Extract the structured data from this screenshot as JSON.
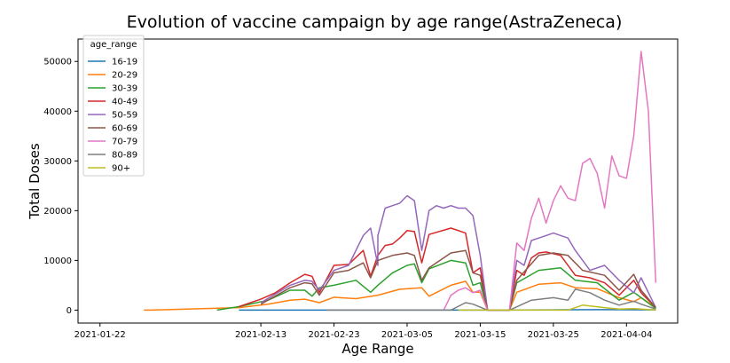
{
  "chart_data": {
    "type": "line",
    "title": "Evolution of vaccine campaign by age range(AstraZeneca)",
    "xlabel": "Age Range",
    "ylabel": "Total Doses",
    "xlim": [
      "2021-01-19",
      "2021-04-11"
    ],
    "ylim": [
      -2600,
      54500
    ],
    "x_ticks": [
      "2021-01-22",
      "2021-02-13",
      "2021-02-23",
      "2021-03-05",
      "2021-03-15",
      "2021-03-25",
      "2021-04-04"
    ],
    "y_ticks": [
      0,
      10000,
      20000,
      30000,
      40000,
      50000
    ],
    "legend": {
      "title": "age_range",
      "placement": "top-left"
    },
    "series": [
      {
        "name": "16-19",
        "color": "#1f77b4",
        "x": [
          "2021-02-10",
          "2021-03-10",
          "2021-03-17",
          "2021-03-25",
          "2021-04-01",
          "2021-04-08"
        ],
        "values": [
          0,
          0,
          0,
          50,
          100,
          50
        ]
      },
      {
        "name": "20-29",
        "color": "#ff7f0e",
        "x": [
          "2021-01-28",
          "2021-01-29",
          "2021-02-10",
          "2021-02-14",
          "2021-02-17",
          "2021-02-19",
          "2021-02-21",
          "2021-02-23",
          "2021-02-26",
          "2021-03-01",
          "2021-03-04",
          "2021-03-07",
          "2021-03-08",
          "2021-03-11",
          "2021-03-13",
          "2021-03-14",
          "2021-03-15",
          "2021-03-16",
          "2021-03-19",
          "2021-03-20",
          "2021-03-23",
          "2021-03-26",
          "2021-03-28",
          "2021-03-31",
          "2021-04-03",
          "2021-04-05",
          "2021-04-06",
          "2021-04-08"
        ],
        "values": [
          0,
          0,
          500,
          1200,
          2000,
          2200,
          1500,
          2600,
          2300,
          3000,
          4200,
          4500,
          2800,
          5000,
          5800,
          3600,
          3600,
          0,
          0,
          3600,
          5200,
          5500,
          4500,
          4300,
          2500,
          1700,
          2500,
          500
        ]
      },
      {
        "name": "30-39",
        "color": "#2ca02c",
        "x": [
          "2021-02-07",
          "2021-02-10",
          "2021-02-14",
          "2021-02-17",
          "2021-02-19",
          "2021-02-20",
          "2021-02-21",
          "2021-02-23",
          "2021-02-26",
          "2021-02-28",
          "2021-03-01",
          "2021-03-03",
          "2021-03-05",
          "2021-03-06",
          "2021-03-07",
          "2021-03-08",
          "2021-03-11",
          "2021-03-13",
          "2021-03-14",
          "2021-03-15",
          "2021-03-16",
          "2021-03-19",
          "2021-03-20",
          "2021-03-23",
          "2021-03-26",
          "2021-03-28",
          "2021-03-31",
          "2021-04-03",
          "2021-04-05",
          "2021-04-06",
          "2021-04-08"
        ],
        "values": [
          0,
          700,
          2000,
          4000,
          4000,
          2800,
          4500,
          5000,
          6000,
          3600,
          5000,
          7500,
          9000,
          9300,
          5500,
          8300,
          10000,
          9500,
          5000,
          5500,
          0,
          0,
          5500,
          8000,
          8500,
          6000,
          5500,
          2000,
          3600,
          2500,
          300
        ]
      },
      {
        "name": "40-49",
        "color": "#d62728",
        "x": [
          "2021-02-10",
          "2021-02-13",
          "2021-02-15",
          "2021-02-17",
          "2021-02-19",
          "2021-02-20",
          "2021-02-21",
          "2021-02-23",
          "2021-02-25",
          "2021-02-27",
          "2021-02-28",
          "2021-03-01",
          "2021-03-02",
          "2021-03-03",
          "2021-03-04",
          "2021-03-05",
          "2021-03-06",
          "2021-03-07",
          "2021-03-08",
          "2021-03-11",
          "2021-03-13",
          "2021-03-14",
          "2021-03-15",
          "2021-03-16",
          "2021-03-19",
          "2021-03-20",
          "2021-03-21",
          "2021-03-22",
          "2021-03-23",
          "2021-03-24",
          "2021-03-26",
          "2021-03-28",
          "2021-03-30",
          "2021-04-01",
          "2021-04-03",
          "2021-04-05",
          "2021-04-06",
          "2021-04-08"
        ],
        "values": [
          700,
          2200,
          3500,
          5500,
          7200,
          6800,
          3500,
          9000,
          9200,
          12000,
          6800,
          11000,
          13000,
          13300,
          14500,
          16000,
          15800,
          9500,
          15200,
          16500,
          15500,
          7500,
          8500,
          0,
          0,
          8000,
          7000,
          10500,
          11500,
          11700,
          11000,
          7000,
          6500,
          5500,
          3000,
          6000,
          3500,
          500
        ]
      },
      {
        "name": "50-59",
        "color": "#9467bd",
        "x": [
          "2021-02-13",
          "2021-02-17",
          "2021-02-19",
          "2021-02-20",
          "2021-02-21",
          "2021-02-23",
          "2021-02-25",
          "2021-02-27",
          "2021-02-28",
          "2021-02-29",
          "2021-03-01",
          "2021-03-02",
          "2021-03-03",
          "2021-03-04",
          "2021-03-05",
          "2021-03-06",
          "2021-03-07",
          "2021-03-08",
          "2021-03-09",
          "2021-03-10",
          "2021-03-11",
          "2021-03-12",
          "2021-03-13",
          "2021-03-14",
          "2021-03-15",
          "2021-03-16",
          "2021-03-19",
          "2021-03-20",
          "2021-03-21",
          "2021-03-22",
          "2021-03-23",
          "2021-03-24",
          "2021-03-25",
          "2021-03-27",
          "2021-03-28",
          "2021-03-30",
          "2021-04-01",
          "2021-04-03",
          "2021-04-05",
          "2021-04-06",
          "2021-04-08"
        ],
        "values": [
          1500,
          5000,
          6000,
          5800,
          4000,
          8000,
          9000,
          15000,
          16500,
          9000,
          15000,
          20500,
          21000,
          21500,
          23000,
          22000,
          12000,
          20000,
          21000,
          20500,
          21000,
          20500,
          20500,
          19000,
          11000,
          0,
          0,
          10000,
          9000,
          14000,
          14500,
          15000,
          15500,
          14500,
          12000,
          8000,
          9000,
          6000,
          3500,
          6500,
          500
        ]
      },
      {
        "name": "60-69",
        "color": "#8c564b",
        "x": [
          "2021-02-13",
          "2021-02-17",
          "2021-02-19",
          "2021-02-20",
          "2021-02-21",
          "2021-02-23",
          "2021-02-25",
          "2021-02-27",
          "2021-02-28",
          "2021-03-01",
          "2021-03-03",
          "2021-03-05",
          "2021-03-06",
          "2021-03-07",
          "2021-03-08",
          "2021-03-11",
          "2021-03-13",
          "2021-03-14",
          "2021-03-15",
          "2021-03-16",
          "2021-03-19",
          "2021-03-20",
          "2021-03-23",
          "2021-03-25",
          "2021-03-27",
          "2021-03-29",
          "2021-04-01",
          "2021-04-03",
          "2021-04-05",
          "2021-04-06",
          "2021-04-08"
        ],
        "values": [
          1200,
          4500,
          5500,
          5300,
          3000,
          7500,
          8000,
          9500,
          6500,
          10000,
          11000,
          11500,
          11000,
          6000,
          8500,
          11500,
          12000,
          7500,
          7000,
          0,
          0,
          6000,
          11000,
          11500,
          11000,
          8000,
          7000,
          4000,
          7200,
          4000,
          500
        ]
      },
      {
        "name": "70-79",
        "color": "#e377c2",
        "x": [
          "2021-03-10",
          "2021-03-11",
          "2021-03-12",
          "2021-03-13",
          "2021-03-14",
          "2021-03-15",
          "2021-03-16",
          "2021-03-19",
          "2021-03-20",
          "2021-03-21",
          "2021-03-22",
          "2021-03-23",
          "2021-03-24",
          "2021-03-25",
          "2021-03-26",
          "2021-03-27",
          "2021-03-28",
          "2021-03-29",
          "2021-03-30",
          "2021-03-31",
          "2021-04-01",
          "2021-04-02",
          "2021-04-03",
          "2021-04-04",
          "2021-04-05",
          "2021-04-06",
          "2021-04-07",
          "2021-04-08"
        ],
        "values": [
          0,
          3000,
          4000,
          4500,
          3500,
          4000,
          0,
          0,
          13500,
          12000,
          18500,
          22500,
          17500,
          22000,
          25000,
          22500,
          22000,
          29500,
          30500,
          27500,
          20500,
          31000,
          27000,
          26500,
          35000,
          52000,
          40000,
          5500
        ]
      },
      {
        "name": "80-89",
        "color": "#7f7f7f",
        "x": [
          "2021-02-22",
          "2021-02-26",
          "2021-03-01",
          "2021-03-05",
          "2021-03-11",
          "2021-03-13",
          "2021-03-14",
          "2021-03-16",
          "2021-03-19",
          "2021-03-22",
          "2021-03-25",
          "2021-03-27",
          "2021-03-28",
          "2021-03-30",
          "2021-04-01",
          "2021-04-03",
          "2021-04-05",
          "2021-04-06",
          "2021-04-08"
        ],
        "values": [
          0,
          0,
          0,
          0,
          0,
          1500,
          1200,
          0,
          0,
          2000,
          2500,
          2000,
          4200,
          3500,
          2000,
          1000,
          1800,
          1200,
          200
        ]
      },
      {
        "name": "90+",
        "color": "#bcbd22",
        "x": [
          "2021-03-12",
          "2021-03-16",
          "2021-03-22",
          "2021-03-27",
          "2021-03-29",
          "2021-04-01",
          "2021-04-03",
          "2021-04-05",
          "2021-04-06",
          "2021-04-08"
        ],
        "values": [
          0,
          0,
          0,
          0,
          1000,
          500,
          200,
          300,
          200,
          0
        ]
      }
    ]
  }
}
